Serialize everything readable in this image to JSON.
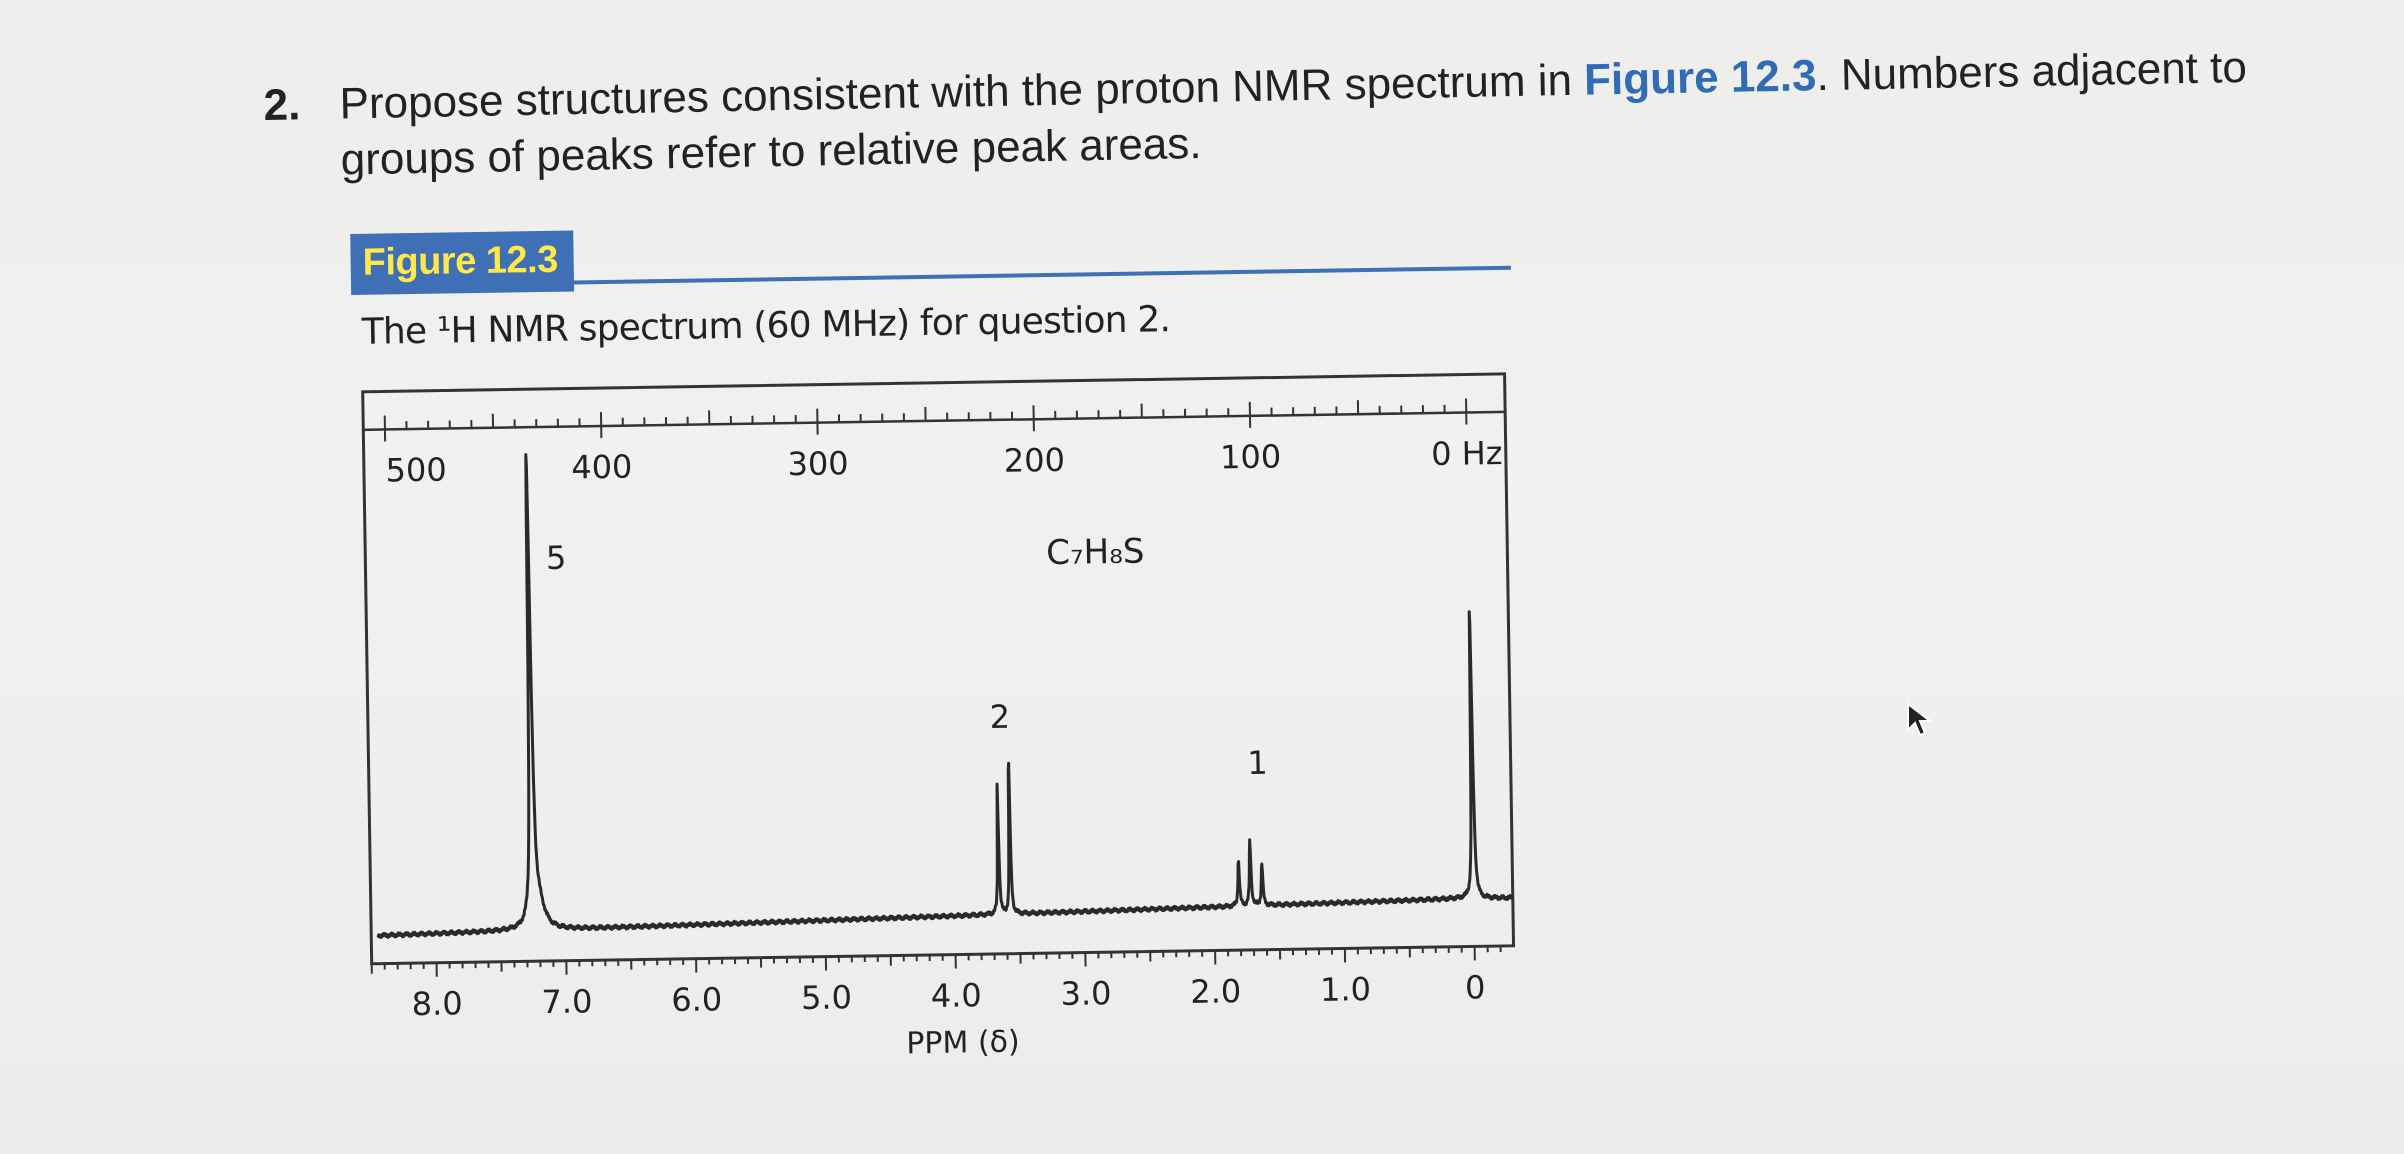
{
  "question": {
    "number": "2.",
    "text_before": "Propose structures consistent with the proton NMR spectrum in ",
    "figure_ref": "Figure 12.3",
    "text_after": ". Numbers adjacent to groups of peaks refer to relative peak areas."
  },
  "figure": {
    "label": "Figure 12.3",
    "caption": "The ¹H NMR spectrum (60 MHz) for question 2."
  },
  "chart_data": {
    "type": "line",
    "title": "",
    "xlabel": "PPM (δ)",
    "ylabel": "",
    "x_axis_ppm": {
      "ticks": [
        8.0,
        7.0,
        6.0,
        5.0,
        4.0,
        3.0,
        2.0,
        1.0,
        0
      ],
      "tick_labels": [
        "8.0",
        "7.0",
        "6.0",
        "5.0",
        "4.0",
        "3.0",
        "2.0",
        "1.0",
        "0"
      ],
      "range": [
        8.5,
        -0.3
      ]
    },
    "x_axis_hz": {
      "ticks": [
        500,
        400,
        300,
        200,
        100,
        0
      ],
      "tick_labels": [
        "500",
        "400",
        "300",
        "200",
        "100",
        "0 Hz"
      ]
    },
    "formula": "C₇H₈S",
    "peaks": [
      {
        "ppm": 7.25,
        "height": 1.0,
        "integration": "5",
        "multiplicity": "singlet"
      },
      {
        "ppm": 3.63,
        "height": 0.34,
        "integration": "2",
        "multiplicity": "doublet"
      },
      {
        "ppm": 1.72,
        "height": 0.14,
        "integration": "1",
        "multiplicity": "triplet"
      },
      {
        "ppm": 0.0,
        "height": 0.63,
        "integration": "",
        "multiplicity": "TMS"
      }
    ],
    "integration_labels": [
      "5",
      "2",
      "1"
    ],
    "grid": false
  }
}
